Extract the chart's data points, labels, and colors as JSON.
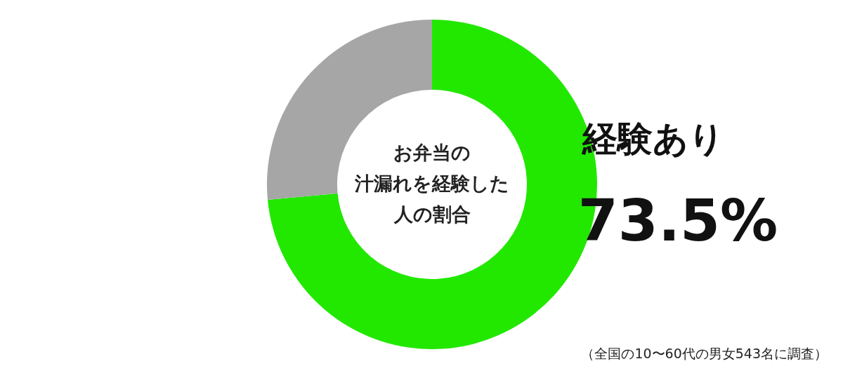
{
  "chart_data": {
    "type": "donut",
    "title": "お弁当の汁漏れを経験した人の割合",
    "categories": [
      "経験あり",
      null
    ],
    "values": [
      73.5,
      26.5
    ],
    "colors": [
      "#22e800",
      "#a6a6a6"
    ],
    "value_labels": [
      "73.5%",
      null
    ],
    "annotations": [
      "（全国の10〜60代の男女543名に調査）"
    ]
  }
}
